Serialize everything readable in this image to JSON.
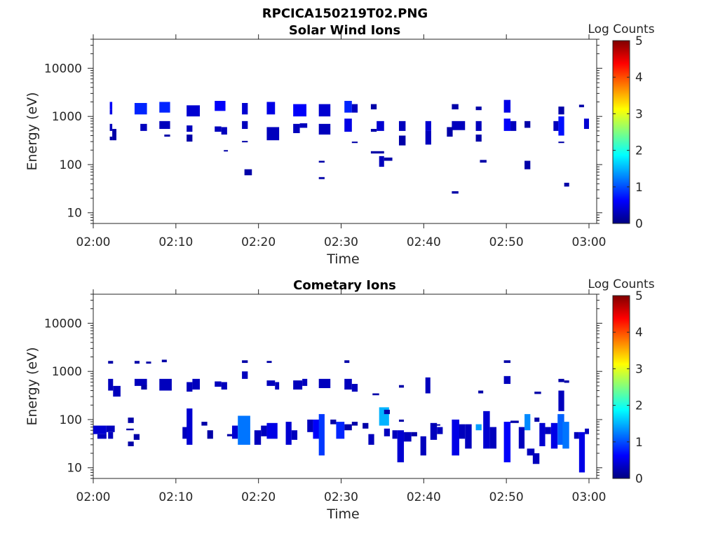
{
  "figure": {
    "title": "RPCICA150219T02.PNG"
  },
  "chart_data": [
    {
      "type": "heatmap",
      "title": "Solar Wind Ions",
      "xlabel": "Time",
      "ylabel": "Energy (eV)",
      "x_ticks": [
        "02:00",
        "02:10",
        "02:20",
        "02:30",
        "02:40",
        "02:50",
        "03:00"
      ],
      "x_range_minutes": [
        0,
        60
      ],
      "y_scale": "log",
      "y_ticks": [
        10,
        100,
        1000,
        10000
      ],
      "y_range": [
        6,
        40000
      ],
      "colorbar": {
        "label": "Log Counts",
        "ticks": [
          0,
          1,
          2,
          3,
          4,
          5
        ],
        "colormap": "jet",
        "range": [
          0,
          5
        ]
      },
      "cells": [
        [
          2.0,
          2.3,
          1400,
          2000,
          0.6
        ],
        [
          2.0,
          2.3,
          1100,
          1400,
          0.5
        ],
        [
          2.0,
          2.3,
          500,
          700,
          0.3
        ],
        [
          2.0,
          2.3,
          320,
          380,
          0.2
        ],
        [
          2.3,
          2.8,
          320,
          550,
          0.2
        ],
        [
          5.0,
          6.5,
          1100,
          1900,
          0.8
        ],
        [
          5.7,
          6.5,
          500,
          700,
          0.3
        ],
        [
          8.0,
          9.3,
          1200,
          2000,
          0.8
        ],
        [
          8.0,
          9.3,
          550,
          800,
          0.3
        ],
        [
          8.6,
          9.3,
          380,
          420,
          0.2
        ],
        [
          11.3,
          12.9,
          1000,
          1700,
          0.4
        ],
        [
          11.3,
          12.0,
          480,
          650,
          0.3
        ],
        [
          11.3,
          12.0,
          300,
          420,
          0.2
        ],
        [
          14.7,
          16.0,
          1300,
          2100,
          0.6
        ],
        [
          14.7,
          15.5,
          480,
          620,
          0.3
        ],
        [
          15.5,
          16.2,
          420,
          600,
          0.3
        ],
        [
          15.8,
          16.3,
          190,
          200,
          0.2
        ],
        [
          18.0,
          18.7,
          1100,
          1900,
          0.4
        ],
        [
          18.0,
          18.7,
          550,
          800,
          0.3
        ],
        [
          18.0,
          18.7,
          290,
          310,
          0.2
        ],
        [
          18.3,
          19.2,
          60,
          80,
          0.2
        ],
        [
          21.0,
          22.0,
          1100,
          2000,
          0.5
        ],
        [
          21.0,
          22.5,
          320,
          600,
          0.3
        ],
        [
          24.2,
          25.8,
          1000,
          1800,
          0.6
        ],
        [
          25.0,
          25.9,
          580,
          720,
          0.3
        ],
        [
          24.2,
          25.0,
          450,
          700,
          0.3
        ],
        [
          27.3,
          28.7,
          1000,
          1800,
          0.4
        ],
        [
          27.3,
          28.7,
          420,
          700,
          0.3
        ],
        [
          27.3,
          28.0,
          110,
          120,
          0.2
        ],
        [
          27.3,
          28.0,
          50,
          55,
          0.2
        ],
        [
          30.4,
          31.3,
          1200,
          2100,
          0.8
        ],
        [
          30.4,
          31.3,
          480,
          900,
          0.5
        ],
        [
          31.3,
          32.0,
          1200,
          1800,
          0.3
        ],
        [
          31.3,
          32.0,
          280,
          300,
          0.2
        ],
        [
          33.6,
          34.3,
          1400,
          1800,
          0.2
        ],
        [
          33.6,
          34.3,
          480,
          550,
          0.2
        ],
        [
          34.3,
          35.2,
          500,
          800,
          0.4
        ],
        [
          33.6,
          35.2,
          170,
          190,
          0.2
        ],
        [
          34.6,
          35.2,
          90,
          150,
          0.3
        ],
        [
          35.2,
          36.2,
          120,
          140,
          0.2
        ],
        [
          37.0,
          37.8,
          500,
          800,
          0.3
        ],
        [
          37.0,
          37.8,
          250,
          400,
          0.2
        ],
        [
          40.2,
          40.9,
          500,
          800,
          0.4
        ],
        [
          40.2,
          40.9,
          260,
          500,
          0.3
        ],
        [
          43.4,
          44.2,
          1400,
          1800,
          0.2
        ],
        [
          43.4,
          45.0,
          520,
          800,
          0.3
        ],
        [
          42.8,
          43.5,
          380,
          600,
          0.2
        ],
        [
          43.4,
          44.2,
          25,
          28,
          0.2
        ],
        [
          46.3,
          47.0,
          1350,
          1600,
          0.2
        ],
        [
          46.3,
          47.0,
          500,
          800,
          0.3
        ],
        [
          46.3,
          47.0,
          300,
          420,
          0.2
        ],
        [
          46.8,
          47.6,
          110,
          125,
          0.2
        ],
        [
          49.7,
          50.5,
          1200,
          2200,
          0.5
        ],
        [
          49.7,
          50.5,
          500,
          900,
          0.6
        ],
        [
          50.5,
          51.2,
          500,
          800,
          0.3
        ],
        [
          52.2,
          52.9,
          580,
          800,
          0.2
        ],
        [
          52.2,
          52.9,
          80,
          120,
          0.2
        ],
        [
          55.7,
          56.3,
          500,
          800,
          0.3
        ],
        [
          56.3,
          57.0,
          400,
          1000,
          0.7
        ],
        [
          56.3,
          57.0,
          1100,
          1600,
          0.2
        ],
        [
          56.3,
          57.0,
          280,
          300,
          0.2
        ],
        [
          57.0,
          57.6,
          35,
          42,
          0.2
        ],
        [
          58.8,
          59.4,
          1550,
          1750,
          0.2
        ],
        [
          59.4,
          60.0,
          550,
          900,
          0.4
        ]
      ]
    },
    {
      "type": "heatmap",
      "title": "Cometary Ions",
      "xlabel": "Time",
      "ylabel": "Energy (eV)",
      "x_ticks": [
        "02:00",
        "02:10",
        "02:20",
        "02:30",
        "02:40",
        "02:50",
        "03:00"
      ],
      "x_range_minutes": [
        0,
        60
      ],
      "y_scale": "log",
      "y_ticks": [
        10,
        100,
        1000,
        10000
      ],
      "y_range": [
        6,
        40000
      ],
      "colorbar": {
        "label": "Log Counts",
        "ticks": [
          0,
          1,
          2,
          3,
          4,
          5
        ],
        "colormap": "jet",
        "range": [
          0,
          5
        ]
      },
      "cells": [
        [
          0.0,
          1.6,
          50,
          75,
          0.4
        ],
        [
          0.5,
          1.6,
          40,
          50,
          0.3
        ],
        [
          1.6,
          2.6,
          55,
          75,
          0.3
        ],
        [
          1.8,
          2.4,
          40,
          55,
          0.3
        ],
        [
          1.8,
          2.4,
          1450,
          1650,
          0.2
        ],
        [
          1.8,
          2.4,
          400,
          700,
          0.3
        ],
        [
          2.4,
          3.3,
          300,
          500,
          0.3
        ],
        [
          4.2,
          4.9,
          85,
          110,
          0.2
        ],
        [
          4.2,
          4.9,
          28,
          35,
          0.2
        ],
        [
          4.9,
          5.6,
          38,
          50,
          0.2
        ],
        [
          4.0,
          4.9,
          60,
          65,
          0.2
        ],
        [
          5.0,
          6.5,
          500,
          700,
          0.3
        ],
        [
          5.0,
          5.6,
          1450,
          1650,
          0.2
        ],
        [
          5.8,
          6.5,
          420,
          520,
          0.2
        ],
        [
          6.4,
          7.0,
          1450,
          1600,
          0.2
        ],
        [
          8.0,
          9.5,
          400,
          700,
          0.3
        ],
        [
          8.3,
          8.9,
          1550,
          1750,
          0.2
        ],
        [
          10.8,
          11.6,
          40,
          70,
          0.3
        ],
        [
          11.3,
          12.0,
          30,
          170,
          0.4
        ],
        [
          11.3,
          12.0,
          380,
          600,
          0.3
        ],
        [
          12.0,
          12.9,
          420,
          700,
          0.3
        ],
        [
          13.1,
          13.8,
          75,
          90,
          0.2
        ],
        [
          13.8,
          14.5,
          40,
          60,
          0.2
        ],
        [
          14.7,
          15.5,
          480,
          620,
          0.3
        ],
        [
          15.5,
          16.2,
          420,
          600,
          0.3
        ],
        [
          16.2,
          16.8,
          45,
          50,
          0.2
        ],
        [
          16.8,
          17.5,
          40,
          75,
          0.4
        ],
        [
          17.5,
          19.0,
          30,
          120,
          1.2
        ],
        [
          18.0,
          18.7,
          700,
          1000,
          0.3
        ],
        [
          18.0,
          18.7,
          1500,
          1700,
          0.2
        ],
        [
          19.5,
          20.3,
          30,
          60,
          0.3
        ],
        [
          20.3,
          21.0,
          45,
          75,
          0.3
        ],
        [
          21.0,
          22.3,
          40,
          85,
          0.5
        ],
        [
          21.0,
          21.6,
          1500,
          1650,
          0.2
        ],
        [
          21.0,
          22.0,
          500,
          650,
          0.3
        ],
        [
          22.0,
          22.5,
          420,
          600,
          0.3
        ],
        [
          23.3,
          24.0,
          30,
          90,
          0.4
        ],
        [
          24.0,
          24.7,
          38,
          60,
          0.3
        ],
        [
          24.2,
          25.3,
          420,
          650,
          0.3
        ],
        [
          25.3,
          25.9,
          500,
          700,
          0.3
        ],
        [
          25.9,
          26.6,
          55,
          100,
          0.3
        ],
        [
          26.6,
          27.5,
          40,
          100,
          0.6
        ],
        [
          27.3,
          28.0,
          18,
          130,
          0.9
        ],
        [
          27.3,
          28.7,
          450,
          700,
          0.3
        ],
        [
          28.7,
          29.4,
          80,
          100,
          0.2
        ],
        [
          29.4,
          30.4,
          40,
          90,
          0.8
        ],
        [
          30.4,
          31.3,
          60,
          80,
          0.2
        ],
        [
          30.4,
          31.3,
          420,
          700,
          0.3
        ],
        [
          31.3,
          32.0,
          380,
          550,
          0.3
        ],
        [
          30.4,
          31.0,
          1500,
          1700,
          0.2
        ],
        [
          31.3,
          32.0,
          75,
          90,
          0.2
        ],
        [
          32.6,
          33.3,
          65,
          85,
          0.2
        ],
        [
          33.3,
          34.0,
          30,
          50,
          0.3
        ],
        [
          33.8,
          34.6,
          320,
          350,
          0.2
        ],
        [
          34.6,
          35.8,
          75,
          180,
          1.5
        ],
        [
          35.2,
          35.9,
          45,
          65,
          0.3
        ],
        [
          35.2,
          35.9,
          130,
          160,
          0.2
        ],
        [
          36.2,
          36.8,
          40,
          60,
          0.3
        ],
        [
          36.8,
          37.6,
          13,
          60,
          0.4
        ],
        [
          37.0,
          37.6,
          460,
          520,
          0.2
        ],
        [
          37.0,
          37.6,
          90,
          100,
          0.2
        ],
        [
          37.6,
          38.5,
          35,
          55,
          0.3
        ],
        [
          38.5,
          39.2,
          45,
          55,
          0.2
        ],
        [
          39.6,
          40.3,
          18,
          45,
          0.3
        ],
        [
          40.2,
          40.8,
          350,
          750,
          0.3
        ],
        [
          40.8,
          41.6,
          38,
          85,
          0.3
        ],
        [
          41.6,
          42.3,
          50,
          70,
          0.3
        ],
        [
          41.0,
          42.0,
          75,
          80,
          0.2
        ],
        [
          43.4,
          44.3,
          18,
          100,
          0.5
        ],
        [
          44.3,
          45.0,
          40,
          80,
          0.3
        ],
        [
          45.0,
          45.8,
          25,
          80,
          0.3
        ],
        [
          46.3,
          47.0,
          60,
          80,
          1.4
        ],
        [
          46.6,
          47.2,
          350,
          400,
          0.2
        ],
        [
          47.2,
          48.0,
          25,
          150,
          0.4
        ],
        [
          48.0,
          48.8,
          25,
          70,
          0.3
        ],
        [
          49.7,
          50.5,
          13,
          90,
          0.6
        ],
        [
          49.7,
          50.5,
          1500,
          1700,
          0.2
        ],
        [
          49.7,
          50.5,
          550,
          800,
          0.3
        ],
        [
          50.5,
          51.5,
          85,
          95,
          0.2
        ],
        [
          51.5,
          52.2,
          25,
          70,
          0.3
        ],
        [
          52.2,
          52.9,
          60,
          130,
          1.3
        ],
        [
          52.5,
          53.4,
          18,
          25,
          0.3
        ],
        [
          53.2,
          54.0,
          12,
          20,
          0.3
        ],
        [
          53.4,
          54.0,
          90,
          110,
          0.2
        ],
        [
          53.4,
          54.2,
          340,
          380,
          0.2
        ],
        [
          54.0,
          54.7,
          28,
          85,
          0.4
        ],
        [
          54.7,
          55.4,
          50,
          70,
          0.3
        ],
        [
          55.4,
          56.2,
          25,
          85,
          0.5
        ],
        [
          56.2,
          57.0,
          30,
          130,
          1.1
        ],
        [
          56.8,
          57.6,
          25,
          90,
          1.2
        ],
        [
          56.3,
          57.0,
          150,
          400,
          0.3
        ],
        [
          56.3,
          57.0,
          600,
          700,
          0.2
        ],
        [
          57.0,
          57.6,
          580,
          650,
          0.2
        ],
        [
          58.2,
          58.8,
          40,
          55,
          0.3
        ],
        [
          58.8,
          59.5,
          8,
          55,
          0.5
        ],
        [
          59.5,
          60.0,
          50,
          65,
          0.3
        ]
      ]
    }
  ]
}
